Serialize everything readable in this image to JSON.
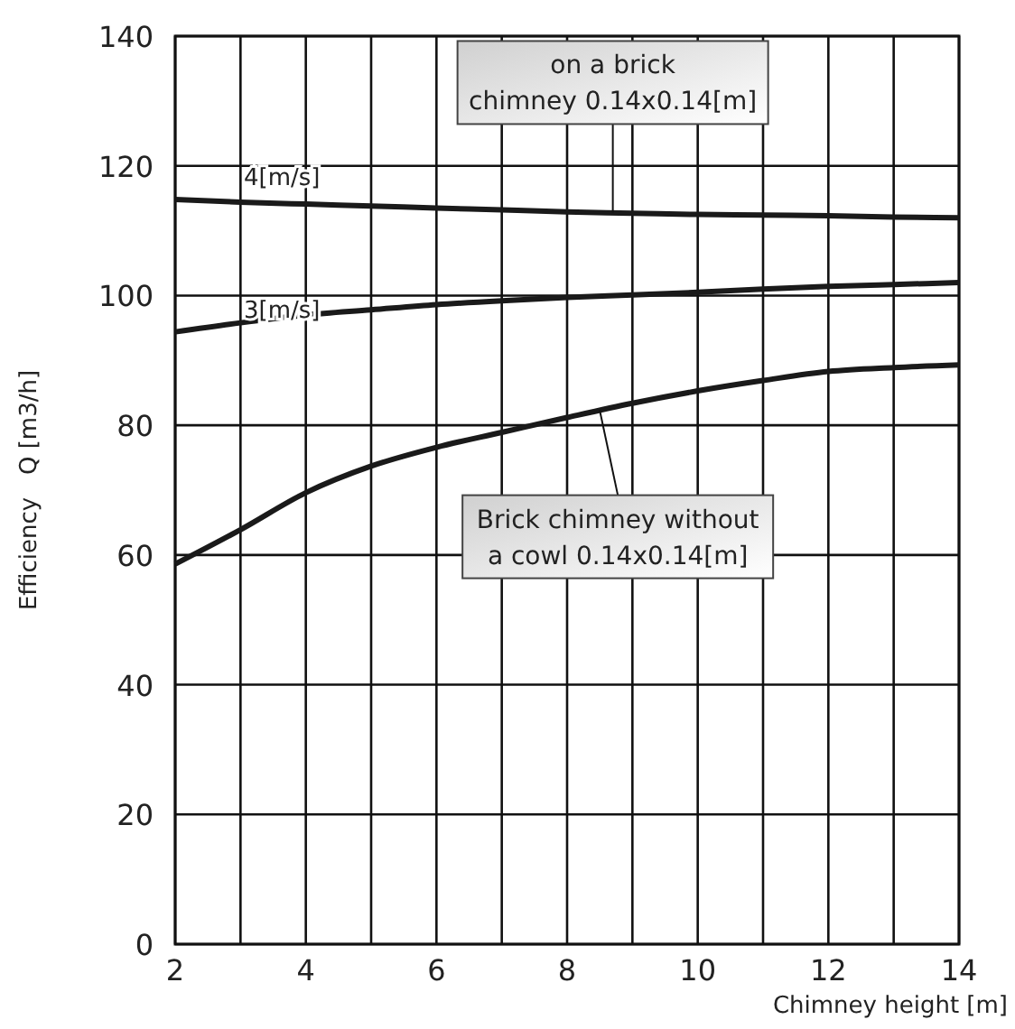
{
  "chart_data": {
    "type": "line",
    "xlabel": "Chimney height [m]",
    "ylabel": "Efficiency   Q [m3/h]",
    "x": [
      2,
      3,
      4,
      5,
      6,
      7,
      8,
      9,
      10,
      11,
      12,
      13,
      14
    ],
    "xlim": [
      2,
      14
    ],
    "xticks": [
      2,
      4,
      6,
      8,
      10,
      12,
      14
    ],
    "ylim": [
      0,
      140
    ],
    "yticks": [
      0,
      20,
      40,
      60,
      80,
      100,
      120,
      140
    ],
    "grid": true,
    "marker": "none",
    "line_style": "solid",
    "series": [
      {
        "name": "4[m/s]",
        "color": "#1a1a1a",
        "values": [
          114.8,
          114.4,
          114.1,
          113.8,
          113.5,
          113.2,
          112.9,
          112.7,
          112.5,
          112.4,
          112.3,
          112.1,
          112
        ]
      },
      {
        "name": "3[m/s]",
        "color": "#1a1a1a",
        "values": [
          94.4,
          95.8,
          97,
          97.8,
          98.6,
          99.2,
          99.7,
          100.1,
          100.5,
          101,
          101.4,
          101.7,
          102
        ]
      },
      {
        "color": "#1a1a1a",
        "values": [
          58.6,
          63.9,
          69.6,
          73.7,
          76.6,
          78.9,
          81.2,
          83.4,
          85.3,
          86.9,
          88.3,
          88.9,
          89.3
        ]
      }
    ],
    "annotations": [
      {
        "text": "on a brick\nchimney  0.14x0.14[m]",
        "x": 8.7,
        "y": 112.8
      },
      {
        "text": "Brick chimney without\na cowl  0.14x0.14[m]",
        "x": 8.5,
        "y": 82.3
      }
    ]
  }
}
